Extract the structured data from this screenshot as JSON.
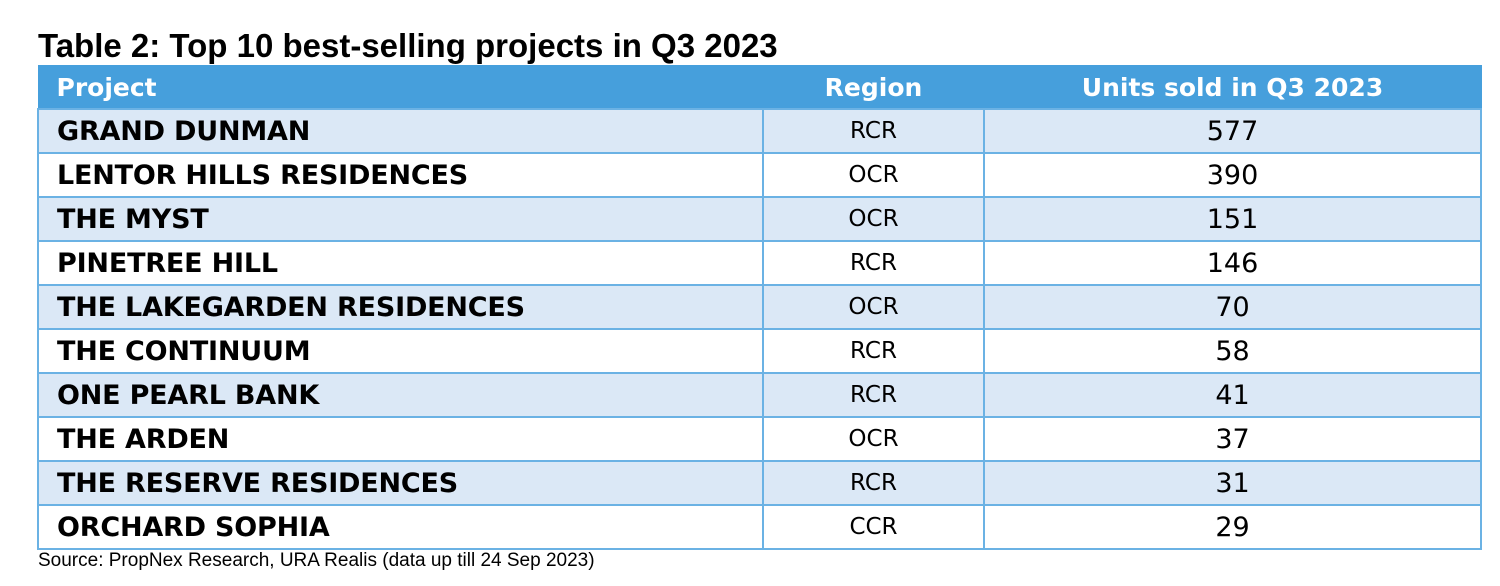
{
  "title": "Table 2: Top 10 best-selling projects in Q3 2023",
  "columns": [
    "Project",
    "Region",
    "Units sold in Q3 2023"
  ],
  "rows": [
    {
      "project": "GRAND DUNMAN",
      "region": "RCR",
      "units": "577"
    },
    {
      "project": "LENTOR HILLS RESIDENCES",
      "region": "OCR",
      "units": "390"
    },
    {
      "project": "THE MYST",
      "region": "OCR",
      "units": "151"
    },
    {
      "project": "PINETREE HILL",
      "region": "RCR",
      "units": "146"
    },
    {
      "project": "THE LAKEGARDEN RESIDENCES",
      "region": "OCR",
      "units": "70"
    },
    {
      "project": "THE CONTINUUM",
      "region": "RCR",
      "units": "58"
    },
    {
      "project": "ONE PEARL BANK",
      "region": "RCR",
      "units": "41"
    },
    {
      "project": "THE ARDEN",
      "region": "OCR",
      "units": "37"
    },
    {
      "project": "THE RESERVE RESIDENCES",
      "region": "RCR",
      "units": "31"
    },
    {
      "project": "ORCHARD SOPHIA",
      "region": "CCR",
      "units": "29"
    }
  ],
  "source": "Source: PropNex Research, URA Realis (data up till 24 Sep 2023)",
  "colors": {
    "header_bg": "#469fdc",
    "header_text": "#ffffff",
    "stripe_bg": "#dbe8f6",
    "border": "#6bb2e4"
  }
}
